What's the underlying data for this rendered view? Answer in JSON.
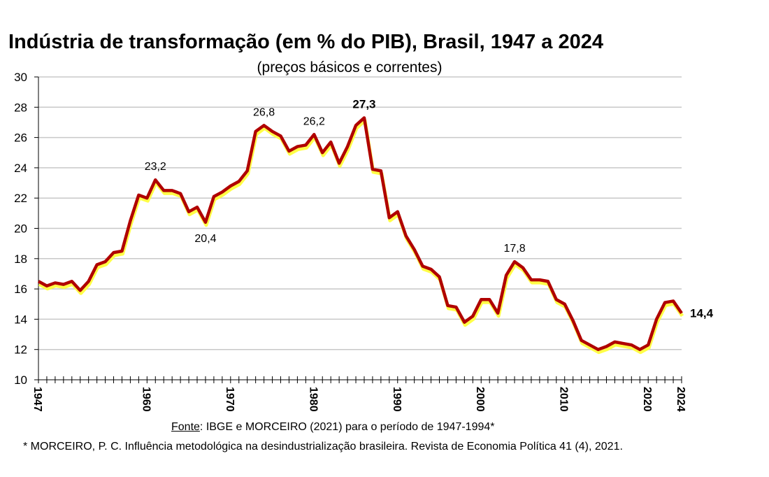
{
  "chart_data": {
    "type": "line",
    "title": "Indústria de transformação (em % do PIB), Brasil, 1947 a 2024",
    "subtitle": "(preços básicos e correntes)",
    "xlabel": "",
    "ylabel": "",
    "xlim": [
      1947,
      2024
    ],
    "ylim": [
      10,
      30
    ],
    "yticks": [
      10,
      12,
      14,
      16,
      18,
      20,
      22,
      24,
      26,
      28,
      30
    ],
    "xtick_labels": [
      1947,
      1960,
      1970,
      1980,
      1990,
      2000,
      2010,
      2020,
      2024
    ],
    "grid": true,
    "line_color": "#B00000",
    "shadow_color": "#FFFF33",
    "x": [
      1947,
      1948,
      1949,
      1950,
      1951,
      1952,
      1953,
      1954,
      1955,
      1956,
      1957,
      1958,
      1959,
      1960,
      1961,
      1962,
      1963,
      1964,
      1965,
      1966,
      1967,
      1968,
      1969,
      1970,
      1971,
      1972,
      1973,
      1974,
      1975,
      1976,
      1977,
      1978,
      1979,
      1980,
      1981,
      1982,
      1983,
      1984,
      1985,
      1986,
      1987,
      1988,
      1989,
      1990,
      1991,
      1992,
      1993,
      1994,
      1995,
      1996,
      1997,
      1998,
      1999,
      2000,
      2001,
      2002,
      2003,
      2004,
      2005,
      2006,
      2007,
      2008,
      2009,
      2010,
      2011,
      2012,
      2013,
      2014,
      2015,
      2016,
      2017,
      2018,
      2019,
      2020,
      2021,
      2022,
      2023,
      2024
    ],
    "values": [
      16.5,
      16.2,
      16.4,
      16.3,
      16.5,
      15.9,
      16.5,
      17.6,
      17.8,
      18.4,
      18.5,
      20.5,
      22.2,
      22.0,
      23.2,
      22.5,
      22.5,
      22.3,
      21.1,
      21.4,
      20.4,
      22.1,
      22.4,
      22.8,
      23.1,
      23.8,
      26.4,
      26.8,
      26.4,
      26.1,
      25.1,
      25.4,
      25.5,
      26.2,
      25.0,
      25.7,
      24.3,
      25.4,
      26.8,
      27.3,
      23.9,
      23.8,
      20.7,
      21.1,
      19.5,
      18.6,
      17.5,
      17.3,
      16.8,
      14.9,
      14.8,
      13.8,
      14.2,
      15.3,
      15.3,
      14.4,
      16.9,
      17.8,
      17.4,
      16.6,
      16.6,
      16.5,
      15.3,
      15.0,
      13.9,
      12.6,
      12.3,
      12.0,
      12.2,
      12.5,
      12.4,
      12.3,
      12.0,
      12.3,
      14.0,
      15.1,
      15.2,
      14.4
    ],
    "annotations": [
      {
        "year": 1961,
        "text": "23,2",
        "bold": false
      },
      {
        "year": 1967,
        "text": "20,4",
        "bold": false
      },
      {
        "year": 1974,
        "text": "26,8",
        "bold": false
      },
      {
        "year": 1980,
        "text": "26,2",
        "bold": false
      },
      {
        "year": 1986,
        "text": "27,3",
        "bold": true
      },
      {
        "year": 2004,
        "text": "17,8",
        "bold": false
      },
      {
        "year": 2024,
        "text": "14,4",
        "bold": true
      }
    ]
  },
  "footer": {
    "source_label": "Fonte",
    "source_text": ": IBGE e MORCEIRO (2021) para o período de 1947-1994*",
    "footnote": "* MORCEIRO, P. C. Influência metodológica na desindustrialização brasileira. Revista de Economia Política 41 (4), 2021."
  }
}
